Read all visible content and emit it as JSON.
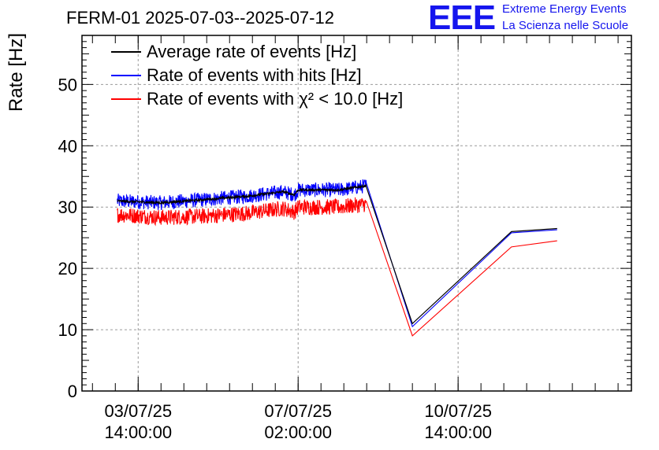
{
  "header": {
    "title": "FERM-01 2025-07-03--2025-07-12",
    "logo_text": "EEE",
    "logo_line1": "Extreme Energy Events",
    "logo_line2": "La Scienza nelle Scuole"
  },
  "colors": {
    "average": "#000000",
    "hits": "#0000ff",
    "chi2": "#ff0000",
    "grid": "#9a9a9a",
    "logo": "#1515ee"
  },
  "chart_data": {
    "type": "line",
    "ylabel": "Rate [Hz]",
    "xlabel": "",
    "ylim": [
      0,
      58
    ],
    "yticks": [
      0,
      10,
      20,
      30,
      40,
      50
    ],
    "grid": true,
    "legend_position": "top-left",
    "xticks": [
      {
        "x": "2025-07-03T14:00:00",
        "date": "03/07/25",
        "time": "14:00:00"
      },
      {
        "x": "2025-07-07T02:00:00",
        "date": "07/07/25",
        "time": "02:00:00"
      },
      {
        "x": "2025-07-10T14:00:00",
        "date": "10/07/25",
        "time": "14:00:00"
      }
    ],
    "xlim": [
      "2025-07-02T08:30:00",
      "2025-07-14T09:00:00"
    ],
    "series": [
      {
        "name": "Average rate of events [Hz]",
        "color": "#000000",
        "noise": 0.8,
        "points": [
          [
            "2025-07-03T03:00:00",
            31.0
          ],
          [
            "2025-07-04T02:00:00",
            30.7
          ],
          [
            "2025-07-05T00:00:00",
            31.2
          ],
          [
            "2025-07-06T00:00:00",
            31.8
          ],
          [
            "2025-07-06T18:00:00",
            32.5
          ],
          [
            "2025-07-07T00:00:00",
            32.0
          ],
          [
            "2025-07-07T02:00:00",
            32.8
          ],
          [
            "2025-07-08T00:00:00",
            32.8
          ],
          [
            "2025-07-08T14:00:00",
            33.5
          ],
          [
            "2025-07-09T14:00:00",
            11.0
          ],
          [
            "2025-07-11T18:00:00",
            26.0
          ],
          [
            "2025-07-12T18:00:00",
            26.5
          ]
        ]
      },
      {
        "name": "Rate of events with hits [Hz]",
        "color": "#0000ff",
        "noise": 1.2,
        "points": [
          [
            "2025-07-03T03:00:00",
            31.0
          ],
          [
            "2025-07-04T02:00:00",
            30.7
          ],
          [
            "2025-07-05T00:00:00",
            31.2
          ],
          [
            "2025-07-06T00:00:00",
            31.8
          ],
          [
            "2025-07-06T18:00:00",
            32.5
          ],
          [
            "2025-07-07T00:00:00",
            32.0
          ],
          [
            "2025-07-07T02:00:00",
            32.8
          ],
          [
            "2025-07-08T00:00:00",
            32.8
          ],
          [
            "2025-07-08T14:00:00",
            33.5
          ],
          [
            "2025-07-09T14:00:00",
            10.5
          ],
          [
            "2025-07-11T18:00:00",
            25.8
          ],
          [
            "2025-07-12T18:00:00",
            26.3
          ]
        ]
      },
      {
        "name": "Rate of events with χ² < 10.0 [Hz]",
        "color": "#ff0000",
        "noise": 1.3,
        "points": [
          [
            "2025-07-03T03:00:00",
            28.8
          ],
          [
            "2025-07-04T02:00:00",
            28.3
          ],
          [
            "2025-07-05T00:00:00",
            28.5
          ],
          [
            "2025-07-06T00:00:00",
            29.0
          ],
          [
            "2025-07-06T18:00:00",
            29.8
          ],
          [
            "2025-07-07T00:00:00",
            29.2
          ],
          [
            "2025-07-07T02:00:00",
            30.0
          ],
          [
            "2025-07-08T00:00:00",
            30.0
          ],
          [
            "2025-07-08T14:00:00",
            30.5
          ],
          [
            "2025-07-09T14:00:00",
            9.0
          ],
          [
            "2025-07-11T18:00:00",
            23.5
          ],
          [
            "2025-07-12T18:00:00",
            24.5
          ]
        ]
      }
    ]
  }
}
